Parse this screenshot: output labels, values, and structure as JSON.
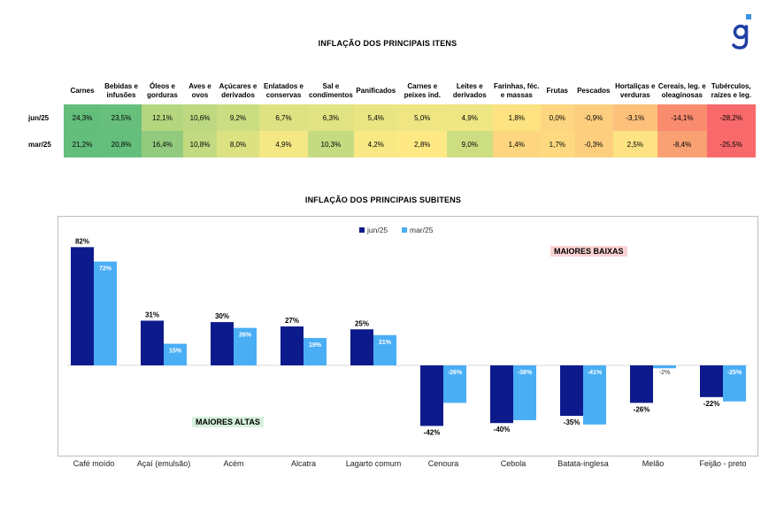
{
  "logo": {
    "glyph": "g",
    "color": "#1f3fa3",
    "accent": "#3a8fe0"
  },
  "heatmap": {
    "title": "INFLAÇÃO DOS PRINCIPAIS ITENS",
    "columns": [
      "Carnes",
      "Bebidas e infusões",
      "Óleos e gorduras",
      "Aves e ovos",
      "Açúcares e derivados",
      "Enlatados e conservas",
      "Sal e condimentos",
      "Panificados",
      "Carnes e peixes ind.",
      "Leites e derivados",
      "Farinhas, féc. e massas",
      "Frutas",
      "Pescados",
      "Hortaliças e verduras",
      "Cereais, leg. e oleaginosas",
      "Tubérculos, raízes e leg."
    ],
    "rows": [
      {
        "label": "jun/25",
        "values": [
          "24,3%",
          "23,5%",
          "12,1%",
          "10,6%",
          "9,2%",
          "6,7%",
          "6,3%",
          "5,4%",
          "5,0%",
          "4,9%",
          "1,8%",
          "0,0%",
          "-0,9%",
          "-3,1%",
          "-14,1%",
          "-28,2%"
        ],
        "colors": [
          "#63be7b",
          "#67bf7c",
          "#b4d67f",
          "#bcd981",
          "#cbdd81",
          "#dfe283",
          "#e2e383",
          "#eae583",
          "#efe683",
          "#eee683",
          "#fde282",
          "#fed580",
          "#fece7f",
          "#fdc17c",
          "#f98b6e",
          "#f8696b"
        ]
      },
      {
        "label": "mar/25",
        "values": [
          "21,2%",
          "20,8%",
          "16,4%",
          "10,8%",
          "8,0%",
          "4,9%",
          "10,3%",
          "4,2%",
          "2,8%",
          "9,0%",
          "1,4%",
          "1,7%",
          "-0,3%",
          "2,5%",
          "-8,4%",
          "-25,5%"
        ],
        "colors": [
          "#63be7b",
          "#65bf7c",
          "#93cb7e",
          "#c2da81",
          "#dce182",
          "#f3e884",
          "#c4db81",
          "#f8e984",
          "#ffe984",
          "#ccdd82",
          "#fed680",
          "#fed980",
          "#fece7f",
          "#fde383",
          "#f9a172",
          "#f8696b"
        ]
      }
    ]
  },
  "chart_data": {
    "type": "bar",
    "title": "INFLAÇÃO DOS PRINCIPAIS SUBITENS",
    "categories": [
      "Café moído",
      "Açaí (emulsão)",
      "Acém",
      "Alcatra",
      "Lagarto comum",
      "Cenoura",
      "Cebola",
      "Batata-inglesa",
      "Melão",
      "Feijão - preto"
    ],
    "series": [
      {
        "name": "jun/25",
        "values": [
          82,
          31,
          30,
          27,
          25,
          -42,
          -40,
          -35,
          -26,
          -22
        ],
        "labels": [
          "82%",
          "31%",
          "30%",
          "27%",
          "25%",
          "-42%",
          "-40%",
          "-35%",
          "-26%",
          "-22%"
        ],
        "color": "#0d1a8c"
      },
      {
        "name": "mar/25",
        "values": [
          72,
          15,
          26,
          19,
          21,
          -26,
          -38,
          -41,
          -2,
          -25
        ],
        "labels": [
          "72%",
          "15%",
          "26%",
          "19%",
          "21%",
          "-26%",
          "-38%",
          "-41%",
          "-2%",
          "-25%"
        ],
        "color": "#4aaef5"
      }
    ],
    "legend": "top-center",
    "grid": false,
    "annotations": {
      "highs": "MAIORES ALTAS",
      "lows": "MAIORES BAIXAS"
    }
  }
}
